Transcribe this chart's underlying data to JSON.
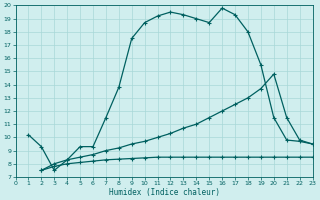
{
  "line1_x": [
    1,
    2,
    3,
    4,
    5,
    6,
    7,
    8,
    9,
    10,
    11,
    12,
    13,
    14,
    15,
    16,
    17,
    18,
    19,
    20,
    21,
    22,
    23
  ],
  "line1_y": [
    10.2,
    9.3,
    7.5,
    8.3,
    9.3,
    9.3,
    11.5,
    13.8,
    17.5,
    18.7,
    19.2,
    19.5,
    19.3,
    19.0,
    18.7,
    19.8,
    19.3,
    18.0,
    15.5,
    11.5,
    9.8,
    9.7,
    9.5
  ],
  "line2_x": [
    2,
    3,
    4,
    5,
    6,
    7,
    8,
    9,
    10,
    11,
    12,
    13,
    14,
    15,
    16,
    17,
    18,
    19,
    20,
    21,
    22,
    23
  ],
  "line2_y": [
    7.5,
    8.0,
    8.3,
    8.5,
    8.7,
    9.0,
    9.2,
    9.5,
    9.7,
    10.0,
    10.3,
    10.7,
    11.0,
    11.5,
    12.0,
    12.5,
    13.0,
    13.7,
    14.8,
    11.5,
    9.8,
    9.5
  ],
  "line3_x": [
    2,
    3,
    4,
    5,
    6,
    7,
    8,
    9,
    10,
    11,
    12,
    13,
    14,
    15,
    16,
    17,
    18,
    19,
    20,
    21,
    22,
    23
  ],
  "line3_y": [
    7.5,
    7.8,
    8.0,
    8.1,
    8.2,
    8.3,
    8.35,
    8.4,
    8.45,
    8.5,
    8.5,
    8.5,
    8.5,
    8.5,
    8.5,
    8.5,
    8.5,
    8.5,
    8.5,
    8.5,
    8.5,
    8.5
  ],
  "line_color": "#006060",
  "bg_color": "#d0eeee",
  "grid_color": "#a8d8d8",
  "xlabel": "Humidex (Indice chaleur)",
  "xlim": [
    0,
    23
  ],
  "ylim": [
    7,
    20
  ],
  "xticks": [
    0,
    1,
    2,
    3,
    4,
    5,
    6,
    7,
    8,
    9,
    10,
    11,
    12,
    13,
    14,
    15,
    16,
    17,
    18,
    19,
    20,
    21,
    22,
    23
  ],
  "yticks": [
    7,
    8,
    9,
    10,
    11,
    12,
    13,
    14,
    15,
    16,
    17,
    18,
    19,
    20
  ],
  "marker": "+"
}
